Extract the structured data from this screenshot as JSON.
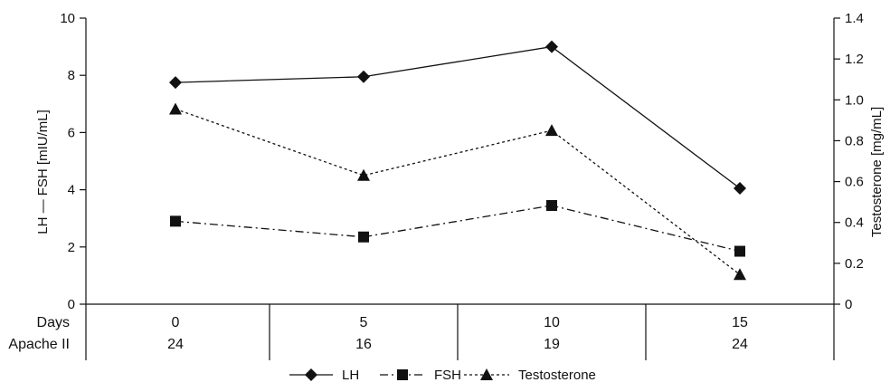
{
  "chart_data": {
    "type": "line",
    "x": [
      0,
      5,
      10,
      15
    ],
    "row_labels": [
      "Days",
      "Apache II"
    ],
    "days": [
      "0",
      "5",
      "10",
      "15"
    ],
    "apache_ii": [
      "24",
      "16",
      "19",
      "24"
    ],
    "y_left": {
      "label": "LH — FSH [mIU/mL]",
      "ylim": [
        0,
        10
      ],
      "ticks": [
        "0",
        "2",
        "4",
        "6",
        "8",
        "10"
      ]
    },
    "y_right": {
      "label": "Testosterone [mg/mL]",
      "ylim": [
        0,
        1.4
      ],
      "ticks": [
        "0",
        "0.2",
        "0.4",
        "0.6",
        "0.8",
        "1.0",
        "1.2",
        "1.4"
      ]
    },
    "series": [
      {
        "name": "LH",
        "axis": "left",
        "marker": "diamond",
        "dash": "solid",
        "values": [
          7.75,
          7.95,
          9.0,
          4.05
        ]
      },
      {
        "name": "FSH",
        "axis": "left",
        "marker": "square",
        "dash": "dashdot",
        "values": [
          2.9,
          2.35,
          3.45,
          1.85
        ]
      },
      {
        "name": "Testosterone",
        "axis": "right",
        "marker": "triangle",
        "dash": "dotted",
        "values": [
          0.955,
          0.63,
          0.85,
          0.145
        ]
      }
    ],
    "legend_position": "bottom-center",
    "grid": false
  }
}
